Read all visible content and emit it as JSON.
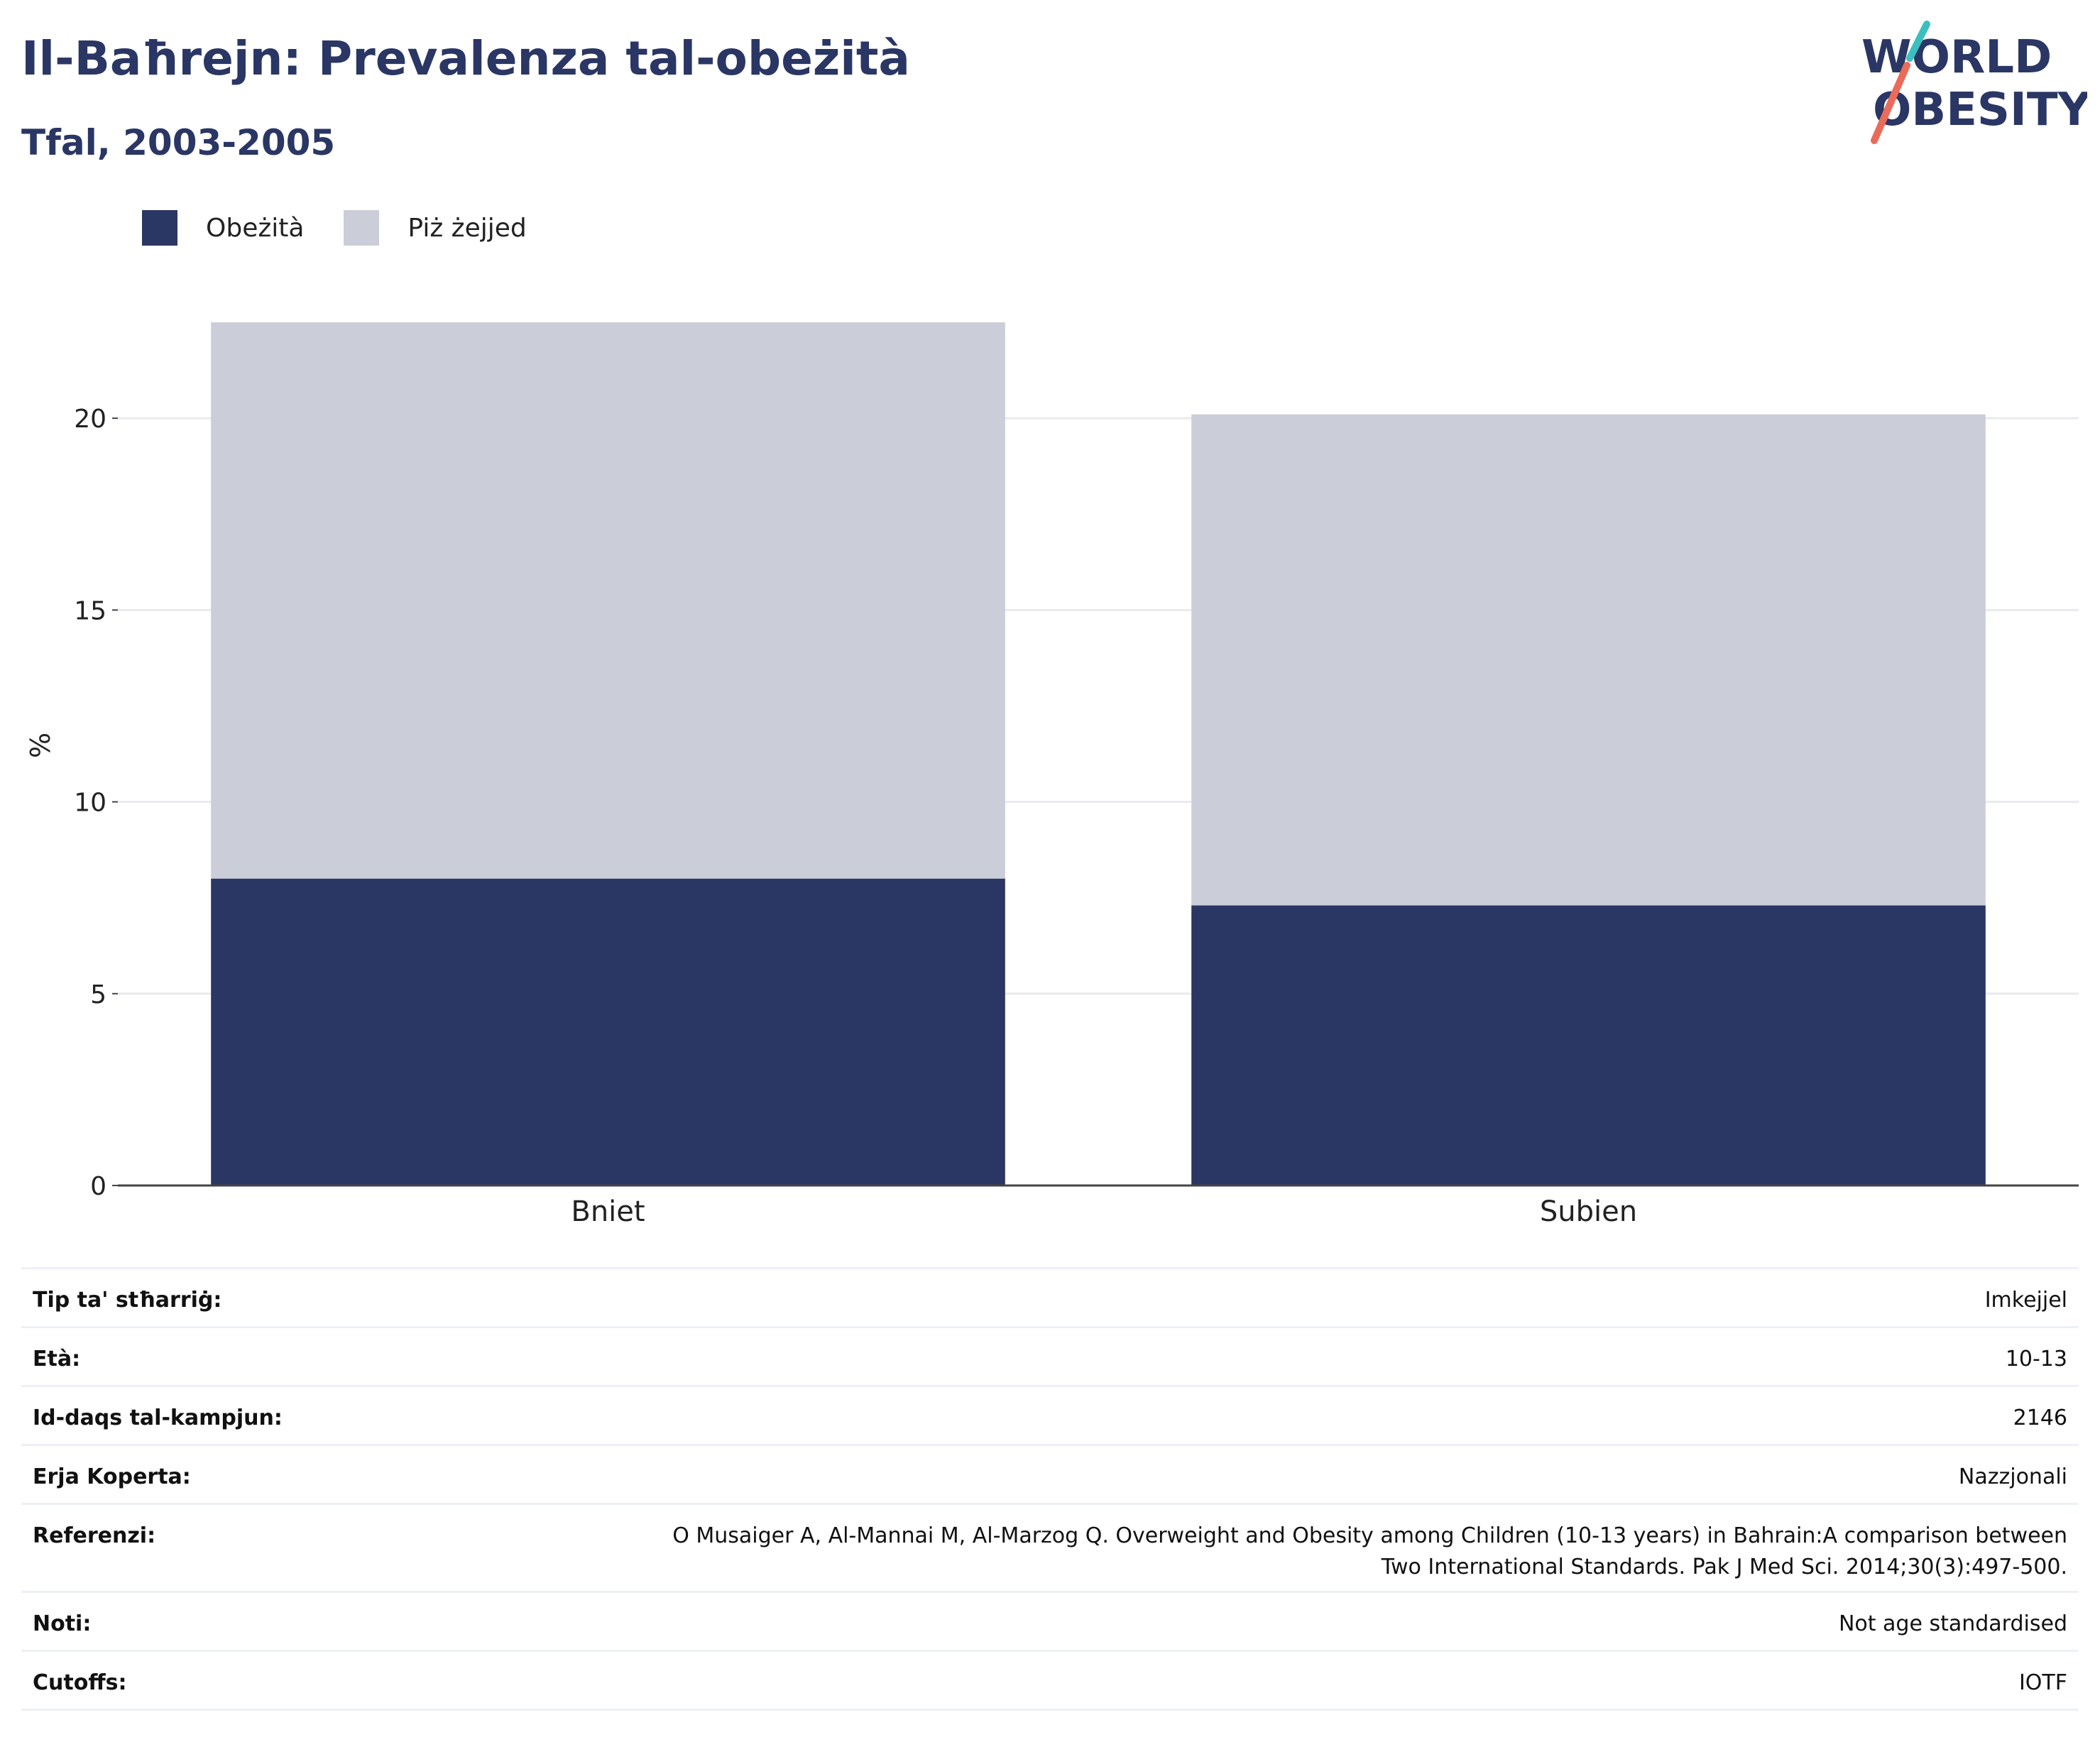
{
  "title": "Il-Baħrejn: Prevalenza tal-obeżità",
  "subtitle": "Tfal, 2003-2005",
  "logo": {
    "line1": "WORLD",
    "line2": "OBESITY"
  },
  "chart_data": {
    "type": "bar",
    "stacked": true,
    "categories": [
      "Bniet",
      "Subien"
    ],
    "series": [
      {
        "name": "Obeżità",
        "values": [
          8.0,
          7.3
        ],
        "color": "#2a3664"
      },
      {
        "name": "Piż żejjed",
        "values": [
          14.5,
          12.8
        ],
        "color": "#cbcdd8"
      }
    ],
    "ylabel": "%",
    "ylim": [
      0,
      23.5
    ],
    "yticks": [
      0,
      5,
      10,
      15,
      20
    ],
    "grid": true,
    "legend_position": "top-left"
  },
  "info": [
    {
      "key": "Tip ta' stħarriġ:",
      "value": "Imkejjel"
    },
    {
      "key": "Età:",
      "value": "10-13"
    },
    {
      "key": "Id-daqs tal-kampjun:",
      "value": "2146"
    },
    {
      "key": "Erja Koperta:",
      "value": "Nazzjonali"
    },
    {
      "key": "Referenzi:",
      "value_lines": [
        "O Musaiger A, Al-Mannai M, Al-Marzog Q. Overweight and Obesity among Children (10-13 years) in Bahrain:A comparison between",
        "Two International Standards. Pak J Med Sci. 2014;30(3):497-500."
      ]
    },
    {
      "key": "Noti:",
      "value": "Not age standardised"
    },
    {
      "key": "Cutoffs:",
      "value": "IOTF"
    }
  ]
}
